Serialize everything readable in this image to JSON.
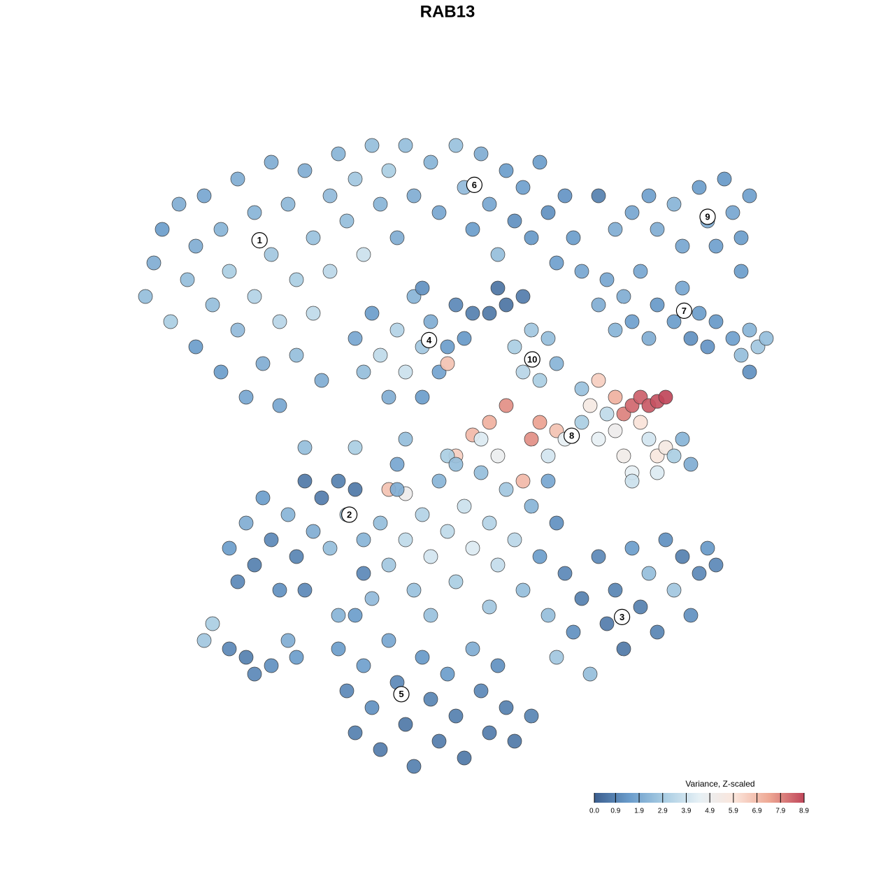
{
  "chart_data": {
    "type": "scatter",
    "title": "RAB13",
    "xlim": [
      -40,
      40
    ],
    "ylim": [
      -40,
      40
    ],
    "x": [
      -36,
      -35,
      -34,
      -33,
      -32,
      -31,
      -30,
      -30,
      -29,
      -28,
      -27,
      -27,
      -26,
      -25,
      -25,
      -24,
      -23,
      -23,
      -22,
      -21,
      -21,
      -20,
      -20,
      -19,
      -18,
      -18,
      -17,
      -16,
      -16,
      -15,
      -14,
      -14,
      -13,
      -12,
      -11,
      -10,
      -9,
      -8,
      -7,
      -6,
      -5,
      -4,
      -2,
      -1,
      1,
      2,
      3,
      4,
      5,
      6,
      7,
      8,
      9,
      10,
      11,
      12,
      13,
      14,
      15,
      16,
      -11,
      -10,
      -9,
      -8,
      -7,
      -6,
      -5,
      -4,
      -3,
      -3,
      -2,
      -1,
      0,
      0,
      1,
      2,
      3,
      5,
      7,
      9,
      8,
      9,
      10,
      11,
      12,
      13,
      20,
      22,
      24,
      25,
      27,
      28,
      30,
      31,
      32,
      33,
      34,
      35,
      36,
      35,
      18,
      19,
      20,
      21,
      22,
      23,
      24,
      25,
      27,
      28,
      29,
      30,
      31,
      32,
      34,
      35,
      36,
      37,
      38,
      36,
      16,
      16,
      17,
      18,
      18,
      19,
      20,
      20,
      21,
      21,
      22,
      23,
      23,
      24,
      25,
      26,
      24,
      25,
      26,
      25,
      27,
      28,
      29,
      22,
      22,
      7,
      5,
      3,
      11,
      10,
      13,
      9,
      6,
      4,
      1,
      -7,
      -5,
      12,
      14,
      -26,
      -25,
      -24,
      -23,
      -22,
      -21,
      -20,
      -19,
      -18,
      -17,
      -16,
      -15,
      -14,
      -13,
      -12,
      -11,
      -10,
      -17,
      -8,
      -7,
      -6,
      -5,
      -4,
      -3,
      -2,
      -1,
      0,
      1,
      2,
      3,
      4,
      5,
      6,
      7,
      8,
      9,
      10,
      11,
      12,
      13,
      -9,
      -2,
      5,
      -6,
      0,
      12,
      13,
      14,
      15,
      16,
      17,
      18,
      19,
      20,
      21,
      22,
      23,
      24,
      25,
      26,
      27,
      28,
      29,
      30,
      31,
      32,
      -13,
      -12,
      -11,
      -10,
      -9,
      -8,
      -7,
      -6,
      -5,
      -4,
      -3,
      -2,
      -1,
      0,
      1,
      2,
      3,
      4,
      5,
      6,
      7,
      8,
      10,
      -13,
      -29,
      -28,
      -26,
      -24,
      -23,
      -21,
      -19,
      -18,
      -10,
      -11,
      -11,
      -17,
      -5,
      1,
      6,
      18,
      -3
    ],
    "y": [
      18,
      22,
      26,
      15,
      29,
      20,
      24,
      12,
      30,
      17,
      26,
      9,
      21,
      32,
      14,
      6,
      28,
      18,
      10,
      34,
      23,
      15,
      5,
      29,
      20,
      11,
      33,
      25,
      16,
      8,
      30,
      21,
      35,
      27,
      32,
      23,
      36,
      29,
      33,
      25,
      36,
      30,
      34,
      28,
      36,
      31,
      26,
      35,
      29,
      23,
      33,
      27,
      31,
      25,
      34,
      28,
      22,
      30,
      25,
      21,
      13,
      9,
      16,
      11,
      6,
      14,
      9,
      18,
      12,
      6,
      15,
      9,
      12,
      10,
      17,
      13,
      16,
      16,
      17,
      18,
      12,
      9,
      14,
      8,
      13,
      10,
      26,
      28,
      30,
      26,
      29,
      24,
      31,
      27,
      24,
      32,
      28,
      25,
      30,
      21,
      17,
      20,
      14,
      18,
      15,
      21,
      13,
      17,
      15,
      19,
      13,
      16,
      12,
      15,
      13,
      11,
      14,
      12,
      13,
      9,
      7,
      3,
      5,
      8,
      1,
      4,
      6,
      2,
      4,
      -1,
      5,
      3,
      6,
      5,
      5.5,
      6,
      1,
      -1,
      0,
      -3,
      -1,
      1,
      -2,
      -3,
      -4,
      5,
      3,
      1.5,
      3,
      1,
      2,
      -4,
      -1,
      1,
      -1,
      -5,
      -5.5,
      -1,
      1,
      -12,
      -16,
      -9,
      -14,
      -6,
      -11,
      -17,
      -8,
      -13,
      -4,
      -10,
      -6,
      -12,
      -4,
      -8,
      -5,
      -11,
      -17,
      -9,
      -14,
      -5,
      -11,
      -17,
      -8,
      -13,
      -4,
      -10,
      -16,
      -7,
      -12,
      -3,
      -9,
      -14,
      -5,
      -11,
      -17,
      -7,
      -13,
      -4,
      -9,
      -18,
      -20,
      -19,
      -2,
      -1,
      -20,
      -25,
      -15,
      -22,
      -18,
      -27,
      -13,
      -21,
      -17,
      -24,
      -12,
      -19,
      -15,
      -22,
      -11,
      -17,
      -13,
      -20,
      -15,
      -12,
      -14,
      -24,
      -29,
      -34,
      -26,
      -31,
      -36,
      -23,
      -28,
      -33,
      -38,
      -25,
      -30,
      -35,
      -27,
      -32,
      -37,
      -24,
      -29,
      -34,
      -26,
      -31,
      -35,
      -32,
      -20,
      -23,
      -21,
      -24,
      -25,
      -27,
      -26,
      -23,
      -25,
      -15,
      -20,
      0,
      0,
      1,
      -2,
      19,
      30,
      19
    ],
    "values": [
      2.5,
      2,
      1.5,
      3,
      2,
      2.5,
      2,
      1.5,
      1.8,
      2.5,
      2.2,
      1.5,
      3,
      2,
      2.4,
      1.8,
      2.2,
      3.2,
      2,
      2,
      2.8,
      3.3,
      1.8,
      2.3,
      3,
      2.5,
      2,
      2.6,
      3.5,
      2,
      2.4,
      3.4,
      2.2,
      2.5,
      2.8,
      3.8,
      2.5,
      2.2,
      3,
      2,
      2.5,
      2,
      2.2,
      1.8,
      2.6,
      2.4,
      1.5,
      2,
      1.8,
      2.5,
      1.5,
      1.2,
      1.6,
      1.4,
      1.5,
      1.2,
      1.6,
      1.3,
      1.5,
      1.8,
      1.8,
      2.5,
      1.5,
      3.5,
      2,
      3.2,
      3.8,
      2.2,
      2.8,
      1.5,
      2,
      1.7,
      1.5,
      6.8,
      1,
      1.4,
      0.8,
      0.6,
      0.5,
      0.7,
      3,
      3.3,
      2.8,
      3,
      2.5,
      2.2,
      2,
      1.8,
      1.6,
      2,
      2.2,
      1.8,
      1.5,
      2,
      1.6,
      1.4,
      1.8,
      1.5,
      1.6,
      1.5,
      2,
      1.8,
      2.2,
      2,
      1.6,
      1.8,
      2,
      1.4,
      1.5,
      1.8,
      1.2,
      1.5,
      1.3,
      1.4,
      1.6,
      2.5,
      2.2,
      2.8,
      2.5,
      1.2,
      2.6,
      3,
      5.5,
      6.5,
      4.5,
      3.5,
      7.2,
      5,
      8,
      5.2,
      8.4,
      6,
      8.5,
      8.6,
      8.7,
      8.9,
      4,
      5.8,
      5.5,
      4.2,
      3,
      2.2,
      2,
      4.5,
      3.8,
      7.8,
      7.2,
      7,
      7.5,
      7.8,
      6.8,
      7,
      4.8,
      4.2,
      6.5,
      6.8,
      5,
      4,
      4.5,
      1.5,
      1,
      2,
      0.8,
      1.5,
      1,
      1.2,
      2.2,
      0.9,
      0.6,
      2,
      0.7,
      2.5,
      0.8,
      2.8,
      0.6,
      2.2,
      1,
      2.5,
      2.8,
      2,
      3.5,
      2.6,
      3.2,
      4,
      2.2,
      3.5,
      3,
      3.8,
      4.2,
      2.5,
      3.2,
      3.6,
      2.8,
      3.4,
      2.5,
      2.2,
      1.5,
      1.8,
      1.2,
      2.4,
      2.6,
      2.8,
      1.8,
      3,
      2.5,
      2.8,
      1,
      1.2,
      0.8,
      2.5,
      1,
      0.7,
      0.9,
      0.6,
      1.5,
      0.8,
      2.5,
      0.9,
      1.2,
      2.8,
      0.8,
      1.2,
      1,
      1.4,
      1,
      1.5,
      1,
      0.8,
      1.6,
      1.2,
      0.7,
      1.8,
      1,
      0.6,
      0.8,
      1.4,
      0.9,
      0.7,
      1.5,
      0.8,
      0.6,
      2,
      1,
      0.7,
      1.2,
      0.8,
      0.6,
      0.9,
      2.2,
      2.8,
      3,
      1,
      0.8,
      1,
      1.2,
      2,
      1.5,
      1,
      1.5,
      3,
      2.5,
      2.5,
      2.5,
      0.5,
      0.8,
      1.2
    ],
    "clusters": {
      "labels": [
        "1",
        "2",
        "3",
        "4",
        "5",
        "6",
        "7",
        "8",
        "9",
        "10"
      ],
      "x": [
        -22.4,
        -11.7,
        20.8,
        -2.2,
        -5.5,
        3.2,
        28.2,
        14.8,
        31,
        10.1
      ],
      "y": [
        24.7,
        -8,
        -20.2,
        12.8,
        -29.4,
        31.3,
        16.3,
        1.4,
        27.5,
        10.5
      ]
    },
    "colorbar": {
      "title": "Variance, Z-scaled",
      "clim": [
        0,
        8.9
      ],
      "ticks": [
        {
          "value": 0,
          "label": "0.0"
        },
        0.9,
        1.9,
        2.9,
        3.9,
        4.9,
        5.9,
        6.9,
        7.9,
        8.9
      ],
      "colors": [
        "#3c5f8f",
        "#6a9ccb",
        "#a9cde3",
        "#e6f0f5",
        "#fbe6dc",
        "#eea894",
        "#c0465a"
      ]
    }
  }
}
